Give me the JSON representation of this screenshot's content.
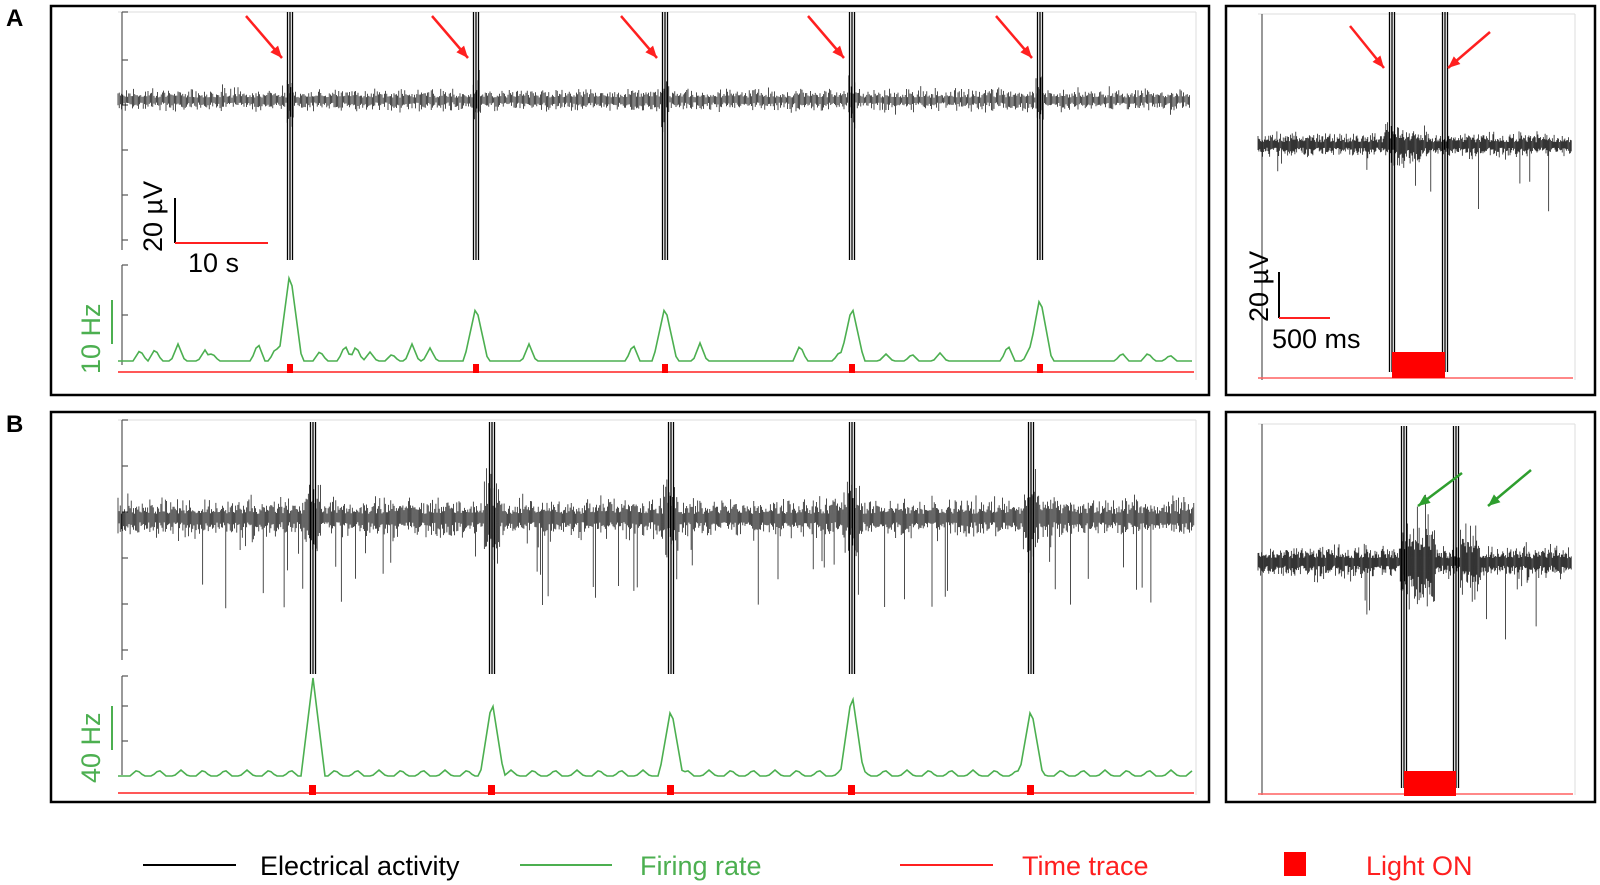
{
  "panels": [
    {
      "letter": "A",
      "scale_voltage": "20 µV",
      "scale_time": "10 s",
      "rate_scale": "10 Hz",
      "zoom_scale_voltage": "20 µV",
      "zoom_scale_time": "500 ms"
    },
    {
      "letter": "B",
      "rate_scale": "40 Hz"
    }
  ],
  "legend": [
    {
      "label": "Electrical activity",
      "color": "#000000",
      "kind": "line"
    },
    {
      "label": "Firing rate",
      "color": "#4caf50",
      "kind": "line"
    },
    {
      "label": "Time trace",
      "color": "#ff2020",
      "kind": "line"
    },
    {
      "label": "Light ON",
      "color": "#ff0000",
      "kind": "square"
    }
  ],
  "colors": {
    "trace": "#000000",
    "rate": "#4caf50",
    "time": "#ff2020",
    "arrowA": "#ff2020",
    "arrowB": "#2e9e2e"
  },
  "chart_data": [
    {
      "type": "line",
      "panel": "A",
      "series": [
        {
          "name": "Electrical activity"
        },
        {
          "name": "Firing rate"
        }
      ],
      "light_on_pulses": 5,
      "firing_rate_peaks_hz": [
        9.5,
        5.8,
        5.8,
        5.8,
        6.8
      ],
      "annotations": [
        "red arrows mark light-evoked spikes"
      ]
    },
    {
      "type": "line",
      "panel": "A-zoom",
      "series": [
        {
          "name": "Electrical activity"
        }
      ],
      "light_on_pulses": 1
    },
    {
      "type": "line",
      "panel": "B",
      "series": [
        {
          "name": "Electrical activity"
        },
        {
          "name": "Firing rate"
        }
      ],
      "light_on_pulses": 5,
      "firing_rate_peaks_hz": [
        40,
        31,
        28,
        34,
        28
      ]
    },
    {
      "type": "line",
      "panel": "B-zoom",
      "series": [
        {
          "name": "Electrical activity"
        }
      ],
      "light_on_pulses": 1,
      "annotations": [
        "green arrows mark evoked spikes"
      ]
    }
  ]
}
